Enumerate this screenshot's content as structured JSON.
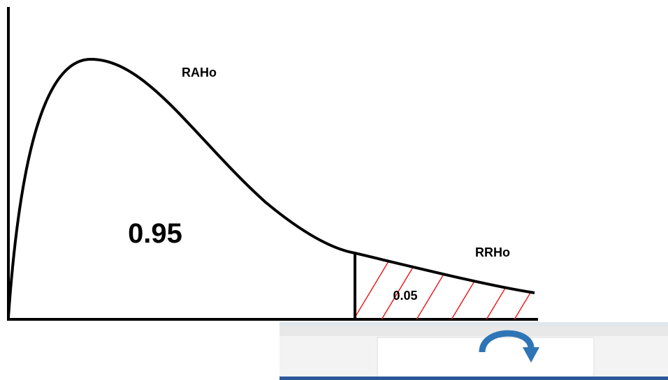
{
  "labels": {
    "acceptance_region": "RAHo",
    "acceptance_area": "0.95",
    "rejection_region": "RRHo",
    "rejection_area": "0.05"
  }
}
